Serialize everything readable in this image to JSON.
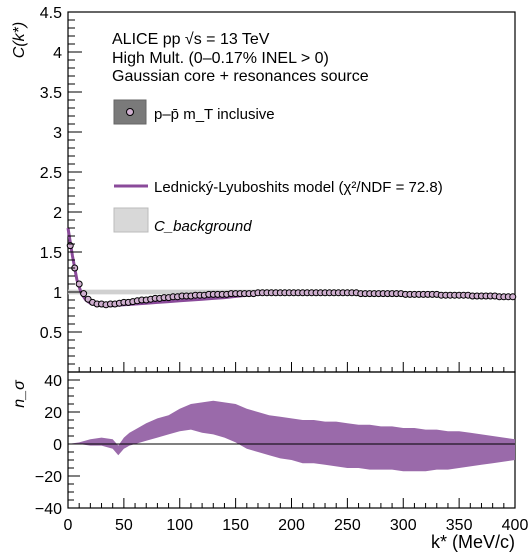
{
  "chart_data": [
    {
      "type": "scatter",
      "title_lines": [
        "ALICE pp √s = 13 TeV",
        "High Mult. (0–0.17% INEL > 0)",
        "Gaussian core + resonances source"
      ],
      "ylabel": "C(k*)",
      "xlim": [
        0,
        400
      ],
      "ylim": [
        0,
        4.5
      ],
      "yticks": [
        0,
        0.5,
        1,
        1.5,
        2,
        2.5,
        3,
        3.5,
        4,
        4.5
      ],
      "ytick_labels": [
        "",
        "0.5",
        "1",
        "1.5",
        "2",
        "2.5",
        "3",
        "3.5",
        "4",
        "4.5"
      ],
      "legend": {
        "data_label": "p–p̄ m_T inclusive",
        "model_label": "Lednický-Lyuboshits model (χ²/NDF = 72.8)",
        "background_label": "C_background"
      },
      "colors": {
        "data_marker": "#d0b0d0",
        "model": "#8a4a9a",
        "background_band": "#c8c8c8"
      },
      "series": [
        {
          "kind": "data",
          "x": [
            2,
            6,
            10,
            14,
            18,
            22,
            26,
            30,
            34,
            38,
            42,
            46,
            50,
            54,
            58,
            62,
            66,
            70,
            74,
            78,
            82,
            86,
            90,
            94,
            98,
            102,
            106,
            110,
            114,
            118,
            122,
            126,
            130,
            134,
            138,
            142,
            146,
            150,
            154,
            158,
            162,
            166,
            170,
            174,
            178,
            182,
            186,
            190,
            194,
            198,
            202,
            206,
            210,
            214,
            218,
            222,
            226,
            230,
            234,
            238,
            242,
            246,
            250,
            254,
            258,
            262,
            266,
            270,
            274,
            278,
            282,
            286,
            290,
            294,
            298,
            302,
            306,
            310,
            314,
            318,
            322,
            326,
            330,
            334,
            338,
            342,
            346,
            350,
            354,
            358,
            362,
            366,
            370,
            374,
            378,
            382,
            386,
            390,
            394,
            398
          ],
          "y": [
            1.58,
            1.3,
            1.1,
            0.98,
            0.91,
            0.87,
            0.85,
            0.85,
            0.84,
            0.85,
            0.85,
            0.86,
            0.87,
            0.87,
            0.88,
            0.89,
            0.9,
            0.9,
            0.91,
            0.92,
            0.92,
            0.93,
            0.93,
            0.94,
            0.94,
            0.95,
            0.95,
            0.95,
            0.96,
            0.96,
            0.96,
            0.97,
            0.97,
            0.97,
            0.97,
            0.97,
            0.98,
            0.98,
            0.98,
            0.98,
            0.98,
            0.98,
            0.99,
            0.99,
            0.99,
            0.99,
            0.99,
            0.99,
            0.99,
            0.99,
            0.99,
            0.99,
            0.99,
            0.99,
            0.99,
            0.99,
            0.99,
            0.99,
            0.99,
            0.99,
            0.99,
            0.99,
            0.99,
            0.99,
            0.99,
            0.98,
            0.98,
            0.98,
            0.98,
            0.98,
            0.98,
            0.98,
            0.98,
            0.98,
            0.98,
            0.97,
            0.97,
            0.97,
            0.97,
            0.97,
            0.97,
            0.97,
            0.97,
            0.96,
            0.96,
            0.96,
            0.96,
            0.96,
            0.96,
            0.96,
            0.95,
            0.95,
            0.95,
            0.95,
            0.95,
            0.95,
            0.94,
            0.94,
            0.94,
            0.94
          ]
        },
        {
          "kind": "model",
          "x": [
            0,
            4,
            8,
            12,
            16,
            20,
            25,
            30,
            35,
            40,
            50,
            60,
            70,
            80,
            90,
            100,
            110,
            120,
            130,
            140,
            150,
            160,
            170,
            180,
            190,
            200,
            220,
            240,
            260,
            280,
            300,
            320,
            340,
            360,
            380,
            400
          ],
          "y": [
            1.8,
            1.45,
            1.15,
            0.98,
            0.9,
            0.86,
            0.84,
            0.83,
            0.83,
            0.83,
            0.84,
            0.85,
            0.86,
            0.87,
            0.88,
            0.89,
            0.9,
            0.91,
            0.92,
            0.93,
            0.945,
            0.96,
            0.97,
            0.98,
            0.99,
            0.995,
            1.0,
            1.0,
            0.995,
            0.99,
            0.98,
            0.975,
            0.97,
            0.96,
            0.955,
            0.95
          ]
        },
        {
          "kind": "background",
          "x": [
            0,
            20,
            40,
            60,
            80,
            100,
            120,
            140,
            160,
            180,
            200,
            220,
            240,
            260,
            280,
            300,
            320,
            340,
            360,
            380,
            400
          ],
          "y": [
            1.0,
            1.0,
            1.0,
            1.0,
            1.0,
            1.0,
            1.0,
            1.0,
            1.0,
            1.0,
            1.0,
            1.0,
            0.995,
            0.99,
            0.985,
            0.98,
            0.975,
            0.97,
            0.96,
            0.955,
            0.95
          ],
          "err": [
            0.03,
            0.03,
            0.03,
            0.03,
            0.03,
            0.03,
            0.03,
            0.03,
            0.03,
            0.03,
            0.02,
            0.02,
            0.02,
            0.02,
            0.02,
            0.02,
            0.02,
            0.02,
            0.02,
            0.02,
            0.02
          ]
        }
      ]
    },
    {
      "type": "area",
      "ylabel": "n_σ",
      "xlabel": "k* (MeV/c)",
      "xlim": [
        0,
        400
      ],
      "ylim": [
        -40,
        45
      ],
      "xticks": [
        0,
        50,
        100,
        150,
        200,
        250,
        300,
        350,
        400
      ],
      "yticks": [
        -40,
        -20,
        0,
        20,
        40
      ],
      "colors": {
        "band": "#9a6aaa"
      },
      "band": {
        "x": [
          0,
          10,
          20,
          30,
          40,
          45,
          50,
          55,
          60,
          70,
          80,
          90,
          100,
          110,
          120,
          130,
          140,
          150,
          160,
          170,
          180,
          190,
          200,
          210,
          220,
          230,
          240,
          250,
          260,
          270,
          280,
          290,
          300,
          310,
          320,
          330,
          340,
          350,
          360,
          370,
          380,
          390,
          400
        ],
        "upper": [
          0,
          1,
          3,
          4,
          3,
          -1,
          4,
          7,
          9,
          13,
          16,
          18,
          22,
          25,
          26,
          27,
          26,
          25,
          22,
          20,
          18,
          17,
          16,
          15,
          15,
          14,
          14,
          13,
          12,
          12,
          11,
          11,
          10,
          10,
          9,
          9,
          8,
          8,
          7,
          6,
          5,
          4,
          3
        ],
        "lower": [
          0,
          0,
          -1,
          -1,
          -3,
          -7,
          -3,
          -1,
          0,
          2,
          4,
          6,
          8,
          9,
          7,
          6,
          4,
          1,
          -3,
          -5,
          -7,
          -9,
          -10,
          -12,
          -12,
          -13,
          -14,
          -15,
          -15,
          -16,
          -16,
          -16,
          -17,
          -17,
          -17,
          -16,
          -16,
          -15,
          -14,
          -13,
          -12,
          -11,
          -10
        ]
      }
    }
  ]
}
